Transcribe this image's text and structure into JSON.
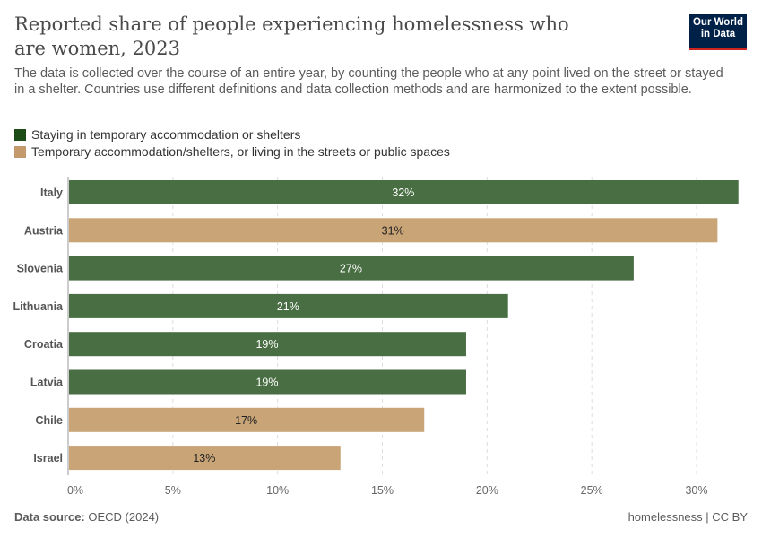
{
  "title": "Reported share of people experiencing homelessness who are women, 2023",
  "subtitle": "The data is collected over the course of an entire year, by counting the people who at any point lived on the street or stayed in a shelter. Countries use different definitions and data collection methods and are harmonized to the extent possible.",
  "logo": "Our World in Data",
  "footer": {
    "source_label": "Data source:",
    "source": "OECD (2024)",
    "right": "homelessness | CC BY"
  },
  "colors": {
    "shelters": "#1d4d17",
    "streets": "#c49a6c",
    "shelters_bar": "#4a6e43",
    "streets_bar": "#c8a477"
  },
  "chart_data": {
    "type": "bar",
    "orientation": "horizontal",
    "grid": true,
    "legend_position": "top-left",
    "legend": [
      {
        "key": "shelters",
        "label": "Staying in temporary accommodation or shelters"
      },
      {
        "key": "streets",
        "label": "Temporary accommodation/shelters, or living in the streets or public spaces"
      }
    ],
    "categories": [
      "Italy",
      "Austria",
      "Slovenia",
      "Lithuania",
      "Croatia",
      "Latvia",
      "Chile",
      "Israel"
    ],
    "values": [
      32,
      31,
      27,
      21,
      19,
      19,
      17,
      13
    ],
    "series_key": [
      "shelters",
      "streets",
      "shelters",
      "shelters",
      "shelters",
      "shelters",
      "streets",
      "streets"
    ],
    "data_labels": [
      "32%",
      "31%",
      "27%",
      "21%",
      "19%",
      "19%",
      "17%",
      "13%"
    ],
    "xlim": [
      0,
      32
    ],
    "xticks": [
      0,
      5,
      10,
      15,
      20,
      25,
      30
    ],
    "xtick_labels": [
      "0%",
      "5%",
      "10%",
      "15%",
      "20%",
      "25%",
      "30%"
    ],
    "unit": "%"
  }
}
